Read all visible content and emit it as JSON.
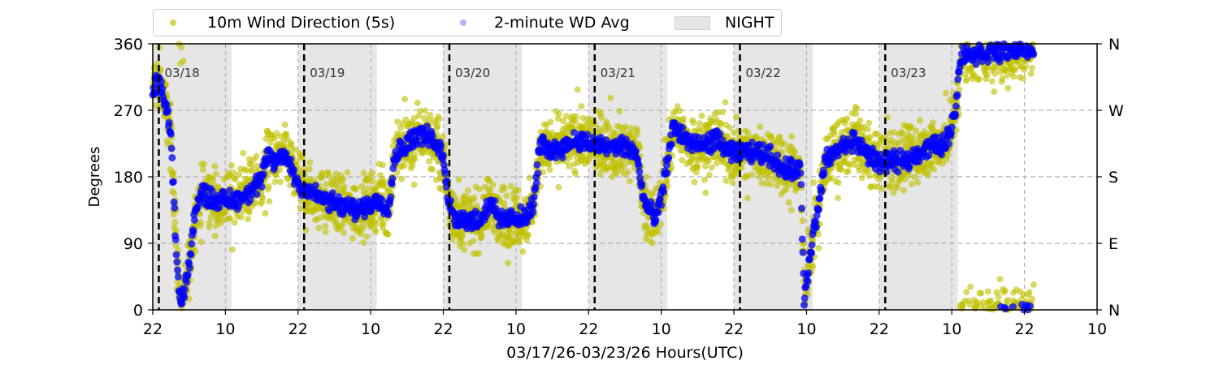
{
  "legend": {
    "items": [
      {
        "label": "10m Wind Direction (5s)",
        "color": "#bfbf00"
      },
      {
        "label": "2-minute WD Avg",
        "color": "#0000ff"
      },
      {
        "label": "NIGHT",
        "color": "#e6e6e6"
      }
    ]
  },
  "chart_data": {
    "type": "scatter",
    "title": "",
    "xlabel": "03/17/26-03/23/26  Hours(UTC)",
    "ylabel": "Degrees",
    "x_units": "hours since 03/17 22:00 UTC",
    "xlim": [
      0,
      156
    ],
    "ylim": [
      0,
      360
    ],
    "x_tick_hours": [
      0,
      12,
      24,
      36,
      48,
      60,
      72,
      84,
      96,
      108,
      120,
      132,
      144,
      156
    ],
    "x_tick_labels": [
      "22",
      "10",
      "22",
      "10",
      "22",
      "10",
      "22",
      "10",
      "22",
      "10",
      "22",
      "10",
      "22",
      "10"
    ],
    "y_ticks": [
      0,
      90,
      180,
      270,
      360
    ],
    "y_tick_labels": [
      "0",
      "90",
      "180",
      "270",
      "360"
    ],
    "right_y_tick_labels": [
      "N",
      "E",
      "S",
      "W",
      "N"
    ],
    "grid": true,
    "legend_position": "top",
    "night_periods_hours": [
      [
        0,
        13
      ],
      [
        24,
        37
      ],
      [
        48,
        61
      ],
      [
        72,
        85
      ],
      [
        96,
        109
      ],
      [
        120,
        133
      ]
    ],
    "day_markers": [
      {
        "hour": 1,
        "label": "03/18"
      },
      {
        "hour": 25,
        "label": "03/19"
      },
      {
        "hour": 49,
        "label": "03/20"
      },
      {
        "hour": 73,
        "label": "03/21"
      },
      {
        "hour": 97,
        "label": "03/22"
      },
      {
        "hour": 121,
        "label": "03/23"
      }
    ],
    "series": [
      {
        "name": "2-minute WD Avg",
        "role": "average",
        "points": [
          [
            0,
            300
          ],
          [
            1,
            312
          ],
          [
            2,
            285
          ],
          [
            3,
            235
          ],
          [
            3.5,
            150
          ],
          [
            4,
            60
          ],
          [
            4.5,
            10
          ],
          [
            5,
            15
          ],
          [
            6,
            60
          ],
          [
            6.5,
            100
          ],
          [
            7,
            130
          ],
          [
            8,
            158
          ],
          [
            10,
            150
          ],
          [
            12,
            148
          ],
          [
            14,
            150
          ],
          [
            16,
            160
          ],
          [
            18,
            175
          ],
          [
            19,
            210
          ],
          [
            20,
            200
          ],
          [
            22,
            210
          ],
          [
            24,
            170
          ],
          [
            25,
            165
          ],
          [
            28,
            150
          ],
          [
            31,
            140
          ],
          [
            34,
            135
          ],
          [
            37,
            148
          ],
          [
            39,
            140
          ],
          [
            40,
            210
          ],
          [
            42,
            225
          ],
          [
            44,
            240
          ],
          [
            46,
            230
          ],
          [
            48,
            210
          ],
          [
            49,
            140
          ],
          [
            50,
            125
          ],
          [
            54,
            120
          ],
          [
            56,
            150
          ],
          [
            57,
            120
          ],
          [
            60,
            125
          ],
          [
            62,
            125
          ],
          [
            63,
            150
          ],
          [
            64,
            225
          ],
          [
            66,
            215
          ],
          [
            70,
            230
          ],
          [
            72,
            225
          ],
          [
            75,
            220
          ],
          [
            78,
            222
          ],
          [
            80,
            210
          ],
          [
            81,
            150
          ],
          [
            83,
            120
          ],
          [
            84,
            150
          ],
          [
            85,
            200
          ],
          [
            86,
            250
          ],
          [
            88,
            230
          ],
          [
            90,
            220
          ],
          [
            93,
            230
          ],
          [
            96,
            210
          ],
          [
            98,
            215
          ],
          [
            102,
            210
          ],
          [
            104,
            190
          ],
          [
            107,
            190
          ],
          [
            107.6,
            15
          ],
          [
            109,
            100
          ],
          [
            110,
            135
          ],
          [
            111,
            200
          ],
          [
            113,
            215
          ],
          [
            116,
            230
          ],
          [
            118,
            210
          ],
          [
            120,
            200
          ],
          [
            124,
            200
          ],
          [
            128,
            220
          ],
          [
            131,
            225
          ],
          [
            132.5,
            265
          ],
          [
            133.5,
            345
          ],
          [
            138,
            348
          ],
          [
            142,
            352
          ],
          [
            145.5,
            355
          ]
        ],
        "spread_deg": 10
      },
      {
        "name": "10m Wind Direction (5s)",
        "role": "raw",
        "follows": "2-minute WD Avg",
        "spread_deg": 35
      }
    ]
  }
}
